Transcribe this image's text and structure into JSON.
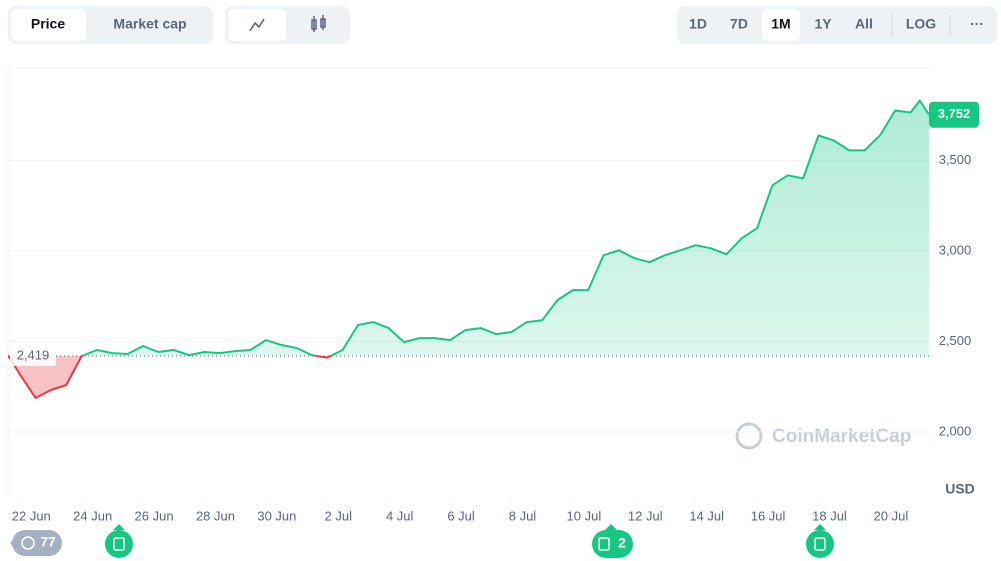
{
  "toolbar": {
    "metric": [
      "Price",
      "Market cap"
    ],
    "ranges": [
      "1D",
      "7D",
      "1M",
      "1Y",
      "All",
      "LOG",
      "···"
    ]
  },
  "currency": "USD",
  "watermark": "CoinMarketCap",
  "events": [
    "77",
    "2"
  ],
  "chart_data": {
    "type": "line",
    "x": [
      -0.4,
      0,
      0.5,
      1,
      1.5,
      2,
      2.5,
      3,
      3.5,
      4,
      4.5,
      5,
      5.5,
      6,
      6.5,
      7,
      7.5,
      8,
      8.5,
      9,
      9.5,
      10,
      10.5,
      11,
      11.5,
      12,
      12.5,
      13,
      13.5,
      14,
      14.5,
      15,
      15.5,
      16,
      16.5,
      17,
      17.5,
      18,
      18.5,
      19,
      19.5,
      20,
      20.5,
      21,
      21.5,
      22,
      22.5,
      23,
      23.5,
      24,
      24.5,
      25,
      25.5,
      26,
      26.5,
      27,
      27.5,
      28,
      28.5,
      29,
      29.3,
      29.6
    ],
    "series": [
      {
        "name": "Price",
        "color": "#16c784",
        "down_color": "#ea3943",
        "values": [
          2424,
          2314,
          2187,
          2231,
          2259,
          2419,
          2452,
          2435,
          2430,
          2474,
          2441,
          2452,
          2424,
          2441,
          2435,
          2446,
          2452,
          2507,
          2480,
          2463,
          2424,
          2410,
          2452,
          2590,
          2606,
          2573,
          2496,
          2518,
          2518,
          2507,
          2562,
          2573,
          2540,
          2551,
          2606,
          2617,
          2728,
          2783,
          2783,
          2976,
          3003,
          2959,
          2937,
          2976,
          3003,
          3031,
          3014,
          2981,
          3069,
          3125,
          3362,
          3417,
          3400,
          3637,
          3610,
          3555,
          3555,
          3637,
          3775,
          3764,
          3830,
          3752
        ]
      }
    ],
    "xlim": [
      -0.4,
      29.6
    ],
    "xticks": [
      {
        "value": 0,
        "label": "22 Jun"
      },
      {
        "value": 2,
        "label": "24 Jun"
      },
      {
        "value": 4,
        "label": "26 Jun"
      },
      {
        "value": 6,
        "label": "28 Jun"
      },
      {
        "value": 8,
        "label": "30 Jun"
      },
      {
        "value": 10,
        "label": "2 Jul"
      },
      {
        "value": 12,
        "label": "4 Jul"
      },
      {
        "value": 14,
        "label": "6 Jul"
      },
      {
        "value": 16,
        "label": "8 Jul"
      },
      {
        "value": 18,
        "label": "10 Jul"
      },
      {
        "value": 20,
        "label": "12 Jul"
      },
      {
        "value": 22,
        "label": "14 Jul"
      },
      {
        "value": 24,
        "label": "16 Jul"
      },
      {
        "value": 26,
        "label": "18 Jul"
      },
      {
        "value": 28,
        "label": "20 Jul"
      }
    ],
    "ylim": [
      1640,
      4010
    ],
    "yticks": [
      {
        "value": 2000,
        "label": "2,000"
      },
      {
        "value": 2500,
        "label": "2,500"
      },
      {
        "value": 3000,
        "label": "3,000"
      },
      {
        "value": 3500,
        "label": "3,500"
      }
    ],
    "grid": true,
    "baseline": {
      "value": 2419,
      "label": "2,419"
    },
    "current_price": {
      "value": 3752,
      "label": "3,752"
    }
  }
}
